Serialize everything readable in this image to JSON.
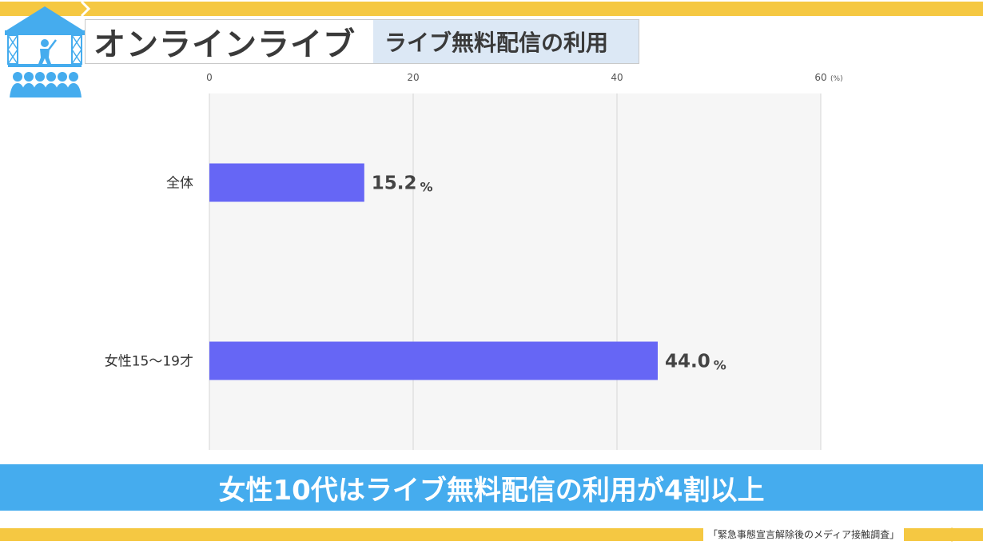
{
  "header": {
    "title": "オンラインライブ",
    "subtitle": "ライブ無料配信の利用"
  },
  "chart_data": {
    "type": "bar",
    "orientation": "horizontal",
    "categories": [
      "全体",
      "女性15〜19才"
    ],
    "values": [
      15.2,
      44.0
    ],
    "value_suffix": "%",
    "xlim": [
      0,
      60
    ],
    "x_ticks": [
      0,
      20,
      40,
      60
    ],
    "x_unit": "(%)",
    "grid": true,
    "bar_color": "#6666f5"
  },
  "banner": {
    "text": "女性10代はライブ無料配信の利用が4割以上"
  },
  "footer": {
    "source": "「緊急事態宣言解除後のメディア接触調査」"
  },
  "colors": {
    "accent_yellow": "#f5c842",
    "accent_blue": "#45acee",
    "subtitle_bg": "#dce8f5"
  },
  "icons": {
    "logo": "stage-audience-icon"
  }
}
